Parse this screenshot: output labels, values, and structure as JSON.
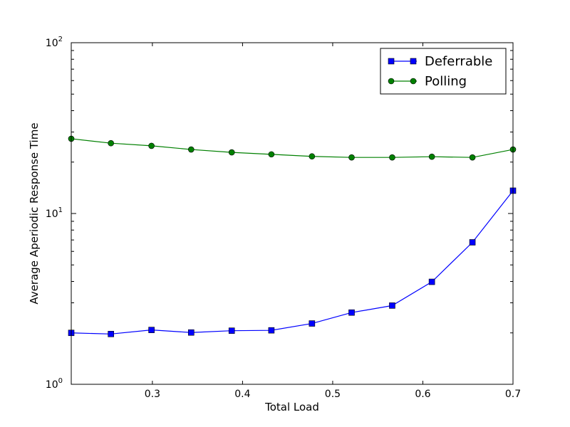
{
  "chart_data": {
    "type": "line",
    "xlabel": "Total Load",
    "ylabel": "Average Aperiodic Response Time",
    "xlim": [
      0.21,
      0.7
    ],
    "ylim": [
      1,
      100
    ],
    "yscale": "log",
    "grid": false,
    "legend_position": "top-right",
    "x_ticks": [
      {
        "value": 0.3,
        "label": "0.3"
      },
      {
        "value": 0.4,
        "label": "0.4"
      },
      {
        "value": 0.5,
        "label": "0.5"
      },
      {
        "value": 0.6,
        "label": "0.6"
      },
      {
        "value": 0.7,
        "label": "0.7"
      }
    ],
    "y_ticks": [
      {
        "value": 1,
        "base": "10",
        "exp": "0"
      },
      {
        "value": 10,
        "base": "10",
        "exp": "1"
      },
      {
        "value": 100,
        "base": "10",
        "exp": "2"
      }
    ],
    "x": [
      0.21,
      0.254,
      0.299,
      0.343,
      0.388,
      0.432,
      0.477,
      0.521,
      0.566,
      0.61,
      0.655,
      0.7
    ],
    "series": [
      {
        "name": "Deferrable",
        "color": "#0000ff",
        "marker": "square",
        "values": [
          2.0,
          1.97,
          2.08,
          2.01,
          2.06,
          2.07,
          2.27,
          2.63,
          2.89,
          3.98,
          6.78,
          13.6
        ]
      },
      {
        "name": "Polling",
        "color": "#008000",
        "marker": "circle",
        "values": [
          27.4,
          25.8,
          24.9,
          23.7,
          22.8,
          22.2,
          21.6,
          21.3,
          21.3,
          21.5,
          21.3,
          23.7
        ]
      }
    ]
  }
}
